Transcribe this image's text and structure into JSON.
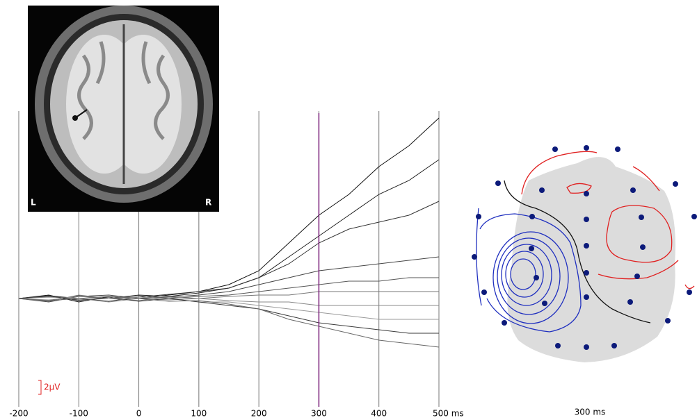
{
  "chart_data": {
    "type": "line",
    "x": [
      -200,
      -150,
      -100,
      -50,
      0,
      50,
      100,
      150,
      200,
      250,
      300,
      350,
      400,
      450,
      500
    ],
    "xlim": [
      -200,
      500
    ],
    "xticks": [
      -200,
      -100,
      0,
      100,
      200,
      300,
      400,
      {
        "value": 500,
        "label": "500 ms"
      }
    ],
    "ylim": [
      -15,
      28
    ],
    "grid": true,
    "cursor": {
      "value": 300,
      "color": "#7b1f7b"
    },
    "scale_bar": {
      "value": 2,
      "label": "2μV",
      "color": "#e02020"
    },
    "series": [
      {
        "color": "#111111",
        "values": [
          0,
          0.5,
          -0.5,
          0.3,
          0,
          0.5,
          1,
          2,
          4,
          8,
          12,
          15,
          19,
          22,
          26
        ]
      },
      {
        "color": "#222222",
        "values": [
          0,
          -0.3,
          0.4,
          0,
          0.5,
          0.3,
          0.8,
          1.5,
          3,
          6,
          9,
          12,
          15,
          17,
          20
        ]
      },
      {
        "color": "#333333",
        "values": [
          0,
          0.4,
          0,
          -0.4,
          0.2,
          0.6,
          1,
          1.5,
          3,
          5,
          8,
          10,
          11,
          12,
          14
        ]
      },
      {
        "color": "#444444",
        "values": [
          0,
          -0.5,
          0.3,
          0.5,
          0,
          0.2,
          0.5,
          1,
          2,
          3,
          4,
          4.5,
          5,
          5.5,
          6
        ]
      },
      {
        "color": "#555555",
        "values": [
          0,
          0.3,
          -0.2,
          0,
          0.4,
          0,
          0.3,
          0.5,
          1,
          1.5,
          2,
          2.5,
          2.5,
          3,
          3
        ]
      },
      {
        "color": "#777777",
        "values": [
          0,
          -0.4,
          0.5,
          0,
          -0.3,
          0.2,
          0,
          0.3,
          0.5,
          0.5,
          1,
          1,
          1,
          1,
          1
        ]
      },
      {
        "color": "#888888",
        "values": [
          0,
          0.2,
          0,
          -0.5,
          0,
          -0.2,
          0,
          -0.3,
          -0.5,
          -0.5,
          -1,
          -1,
          -1,
          -1,
          -1
        ]
      },
      {
        "color": "#999999",
        "values": [
          0,
          -0.2,
          0.3,
          0,
          0.2,
          0,
          -0.5,
          -0.5,
          -1,
          -1.5,
          -2,
          -2.5,
          -3,
          -3,
          -3
        ]
      },
      {
        "color": "#3a3a3a",
        "values": [
          0,
          0.4,
          -0.3,
          0.2,
          -0.4,
          0,
          -0.5,
          -1,
          -1.5,
          -2.5,
          -3.5,
          -4,
          -4.5,
          -5,
          -5
        ]
      },
      {
        "color": "#666666",
        "values": [
          0,
          -0.3,
          0,
          0.3,
          0,
          -0.4,
          -0.3,
          -0.8,
          -1.5,
          -3,
          -4,
          -5,
          -6,
          -6.5,
          -7
        ]
      }
    ]
  },
  "mri": {
    "left": "L",
    "right": "R"
  },
  "topomap": {
    "label": "300 ms"
  }
}
